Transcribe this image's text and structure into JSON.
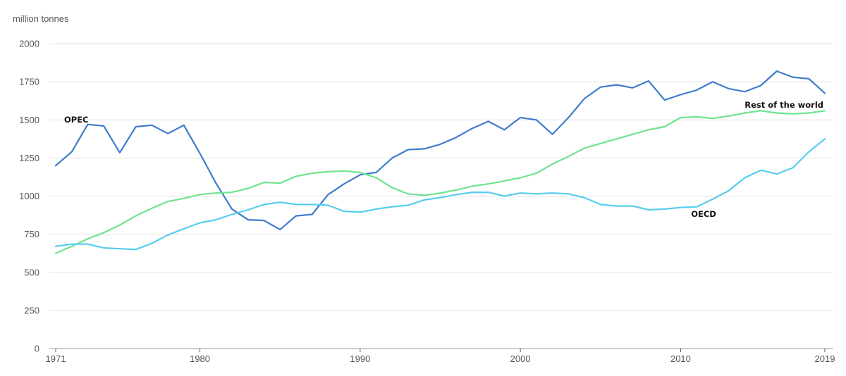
{
  "chart_data": {
    "type": "line",
    "unit_label": "million tonnes",
    "x": [
      1971,
      1972,
      1973,
      1974,
      1975,
      1976,
      1977,
      1978,
      1979,
      1980,
      1981,
      1982,
      1983,
      1984,
      1985,
      1986,
      1987,
      1988,
      1989,
      1990,
      1991,
      1992,
      1993,
      1994,
      1995,
      1996,
      1997,
      1998,
      1999,
      2000,
      2001,
      2002,
      2003,
      2004,
      2005,
      2006,
      2007,
      2008,
      2009,
      2010,
      2011,
      2012,
      2013,
      2014,
      2015,
      2016,
      2017,
      2018,
      2019
    ],
    "x_tick_labels": [
      "1971",
      "1980",
      "1990",
      "2000",
      "2010",
      "2019"
    ],
    "x_tick_values": [
      1971,
      1980,
      1990,
      2000,
      2010,
      2019
    ],
    "y_tick_labels": [
      "0",
      "250",
      "500",
      "750",
      "1000",
      "1250",
      "1500",
      "1750",
      "2000"
    ],
    "y_tick_values": [
      0,
      250,
      500,
      750,
      1000,
      1250,
      1500,
      1750,
      2000
    ],
    "xlim": [
      1971,
      2019
    ],
    "ylim": [
      0,
      2000
    ],
    "grid": "horizontal",
    "series": [
      {
        "name": "OPEC",
        "color": "#3f7ccc",
        "values": [
          1200,
          1290,
          1470,
          1460,
          1285,
          1455,
          1465,
          1410,
          1465,
          1280,
          1085,
          915,
          845,
          840,
          780,
          870,
          880,
          1010,
          1080,
          1140,
          1155,
          1250,
          1305,
          1310,
          1340,
          1385,
          1445,
          1490,
          1435,
          1515,
          1500,
          1405,
          1515,
          1640,
          1715,
          1730,
          1710,
          1755,
          1630,
          1665,
          1695,
          1750,
          1705,
          1685,
          1725,
          1820,
          1780,
          1770,
          1675
        ]
      },
      {
        "name": "Rest of the world",
        "color": "#6ee38e",
        "values": [
          625,
          670,
          720,
          760,
          810,
          870,
          920,
          965,
          985,
          1010,
          1020,
          1025,
          1050,
          1090,
          1085,
          1130,
          1150,
          1160,
          1165,
          1155,
          1120,
          1055,
          1015,
          1005,
          1020,
          1040,
          1065,
          1080,
          1100,
          1120,
          1150,
          1210,
          1260,
          1315,
          1345,
          1375,
          1405,
          1435,
          1455,
          1515,
          1520,
          1510,
          1525,
          1545,
          1560,
          1545,
          1540,
          1545,
          1560
        ]
      },
      {
        "name": "OECD",
        "color": "#56cdf0",
        "values": [
          670,
          685,
          685,
          660,
          655,
          650,
          690,
          745,
          785,
          825,
          845,
          880,
          910,
          945,
          960,
          945,
          945,
          940,
          900,
          895,
          915,
          930,
          940,
          975,
          990,
          1010,
          1025,
          1025,
          1000,
          1020,
          1015,
          1020,
          1015,
          990,
          945,
          935,
          935,
          910,
          915,
          925,
          930,
          980,
          1035,
          1120,
          1170,
          1145,
          1185,
          1290,
          1375
        ]
      }
    ]
  }
}
